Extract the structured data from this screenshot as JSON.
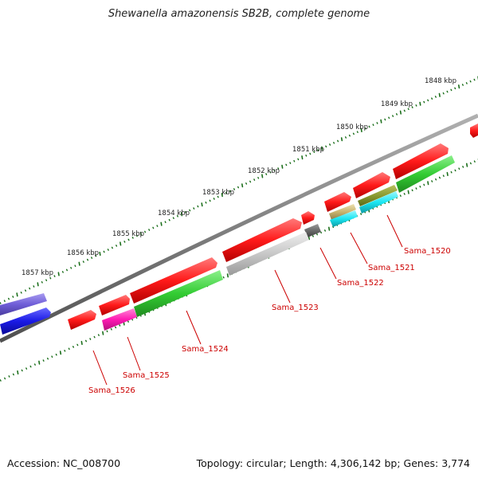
{
  "title": "Shewanella amazonensis SB2B, complete genome",
  "accession": "Accession: NC_008700",
  "topology": "Topology: circular; Length: 4,306,142 bp; Genes: 3,774",
  "colors": {
    "backbone": "#808080",
    "ruler": "#1a6e1a",
    "forward_gene": "#ff1a1a",
    "gene_label": "#cc0000",
    "green_feature": "#33cc33",
    "grey_feature": "#c8c8c8",
    "magenta_feature": "#ff1ab3",
    "cyan_feature": "#1ae6f2",
    "olive_feature": "#c8b46e",
    "blue_feature": "#1a1ae6",
    "purple_feature": "#6f5ed8"
  },
  "kbp_labels": [
    "1848 kbp",
    "1849 kbp",
    "1850 kbp",
    "1851 kbp",
    "1852 kbp",
    "1853 kbp",
    "1854 kbp",
    "1855 kbp",
    "1856 kbp",
    "1857 kbp"
  ],
  "gene_labels": [
    "Sama_1520",
    "Sama_1521",
    "Sama_1522",
    "Sama_1523",
    "Sama_1524",
    "Sama_1525",
    "Sama_1526"
  ]
}
